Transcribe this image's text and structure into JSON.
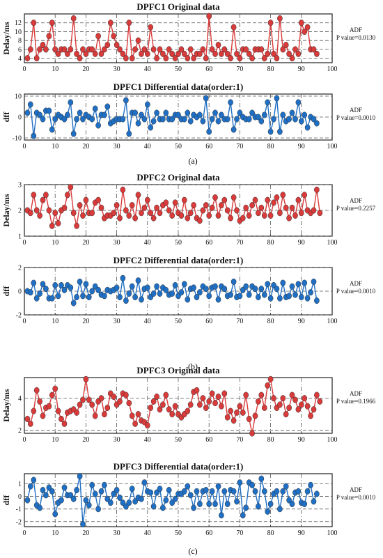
{
  "figure": {
    "captions": [
      "(a)",
      "(b)",
      "(c)"
    ]
  },
  "chart_data": [
    {
      "type": "line",
      "title": "DPFC1  Original data",
      "ylabel": "Delay/ms",
      "xlabel": "",
      "xlim": [
        0,
        100
      ],
      "ylim": [
        3,
        14
      ],
      "xticks": [
        0,
        10,
        20,
        30,
        40,
        50,
        60,
        70,
        80,
        90,
        100
      ],
      "yticks": [
        4,
        6,
        8,
        10,
        12
      ],
      "grid": true,
      "color": "#d93a3a",
      "adf_label": "ADF",
      "p_label": "P value=0.0130",
      "x_start": 1,
      "values": [
        4,
        6,
        12,
        4,
        6,
        7,
        6,
        9,
        12,
        6,
        5,
        6,
        6,
        5,
        6,
        13,
        5,
        4,
        6,
        5,
        6,
        6,
        5,
        9,
        5,
        6,
        7,
        12,
        9,
        7,
        6,
        5,
        4,
        12,
        4,
        6,
        8,
        5,
        6,
        5,
        11,
        6,
        4,
        6,
        5,
        4,
        6,
        5,
        4,
        5,
        6,
        5,
        4,
        6,
        4,
        5,
        5,
        6,
        4,
        13.5,
        6,
        5,
        7,
        5,
        6,
        5,
        4,
        11,
        5,
        4,
        6,
        6,
        5,
        4,
        6,
        6,
        6,
        4,
        5,
        12,
        5,
        4,
        13,
        6,
        7,
        5,
        4,
        6,
        5,
        12,
        10,
        11,
        6,
        6,
        5
      ]
    },
    {
      "type": "line",
      "title": "DPFC1  Differential data(order:1)",
      "ylabel": "dff",
      "xlabel": "",
      "xlim": [
        0,
        100
      ],
      "ylim": [
        -11,
        11
      ],
      "xticks": [
        0,
        10,
        20,
        30,
        40,
        50,
        60,
        70,
        80,
        90,
        100
      ],
      "yticks": [
        -10,
        0,
        10
      ],
      "grid": true,
      "color": "#1f6fc4",
      "adf_label": "ADF",
      "p_label": "P value=0.0010",
      "x_start": 1,
      "values": [
        2,
        6,
        -9,
        2,
        1,
        -1,
        3,
        3,
        -6,
        -1,
        1,
        0,
        -1,
        1,
        7,
        -8,
        -1,
        2,
        -1,
        1,
        0,
        -1,
        4,
        -4,
        1,
        1,
        5,
        -3,
        -2,
        -1,
        -1,
        -1,
        8,
        -8,
        2,
        2,
        -3,
        1,
        -1,
        6,
        -5,
        -2,
        2,
        -1,
        -1,
        2,
        -1,
        -1,
        1,
        1,
        -1,
        -1,
        2,
        -2,
        1,
        0,
        1,
        -2,
        9,
        -7,
        -1,
        2,
        -2,
        1,
        -1,
        -1,
        7,
        -6,
        -1,
        2,
        0,
        -1,
        -1,
        2,
        0,
        0,
        -2,
        1,
        7,
        -7,
        -1,
        9,
        -7,
        1,
        -2,
        -1,
        2,
        -1,
        7,
        -2,
        1,
        -5,
        0,
        -1,
        -3
      ]
    },
    {
      "type": "line",
      "title": "DPFC2   Original data",
      "ylabel": "Delay/ms",
      "xlabel": "",
      "xlim": [
        0,
        100
      ],
      "ylim": [
        1,
        3
      ],
      "xticks": [
        0,
        10,
        20,
        30,
        40,
        50,
        60,
        70,
        80,
        90,
        100
      ],
      "yticks": [
        1,
        2,
        3
      ],
      "grid": true,
      "color": "#d93a3a",
      "adf_label": "ADF",
      "p_label": "P value=0.2257",
      "x_start": 1,
      "values": [
        2.0,
        1.9,
        2.6,
        2.0,
        1.8,
        2.4,
        2.6,
        2.0,
        1.4,
        1.9,
        1.5,
        2.0,
        2.1,
        2.6,
        2.9,
        1.9,
        1.4,
        2.2,
        1.8,
        2.4,
        1.9,
        1.9,
        2.3,
        2.4,
        2.1,
        1.7,
        1.8,
        1.8,
        1.9,
        2.2,
        1.7,
        2.8,
        2.0,
        1.8,
        2.2,
        1.7,
        2.6,
        1.9,
        2.1,
        2.4,
        1.9,
        1.7,
        2.1,
        1.9,
        2.2,
        2.3,
        2.0,
        1.8,
        2.3,
        1.9,
        1.8,
        2.4,
        1.7,
        1.9,
        2.2,
        1.7,
        1.6,
        2.0,
        2.2,
        1.8,
        2.1,
        2.5,
        1.8,
        2.2,
        2.4,
        2.0,
        1.7,
        2.5,
        2.0,
        1.6,
        1.7,
        2.1,
        1.8,
        2.2,
        2.4,
        1.9,
        2.1,
        1.8,
        2.4,
        1.8,
        2.3,
        2.5,
        1.9,
        2.6,
        2.1,
        1.7,
        2.1,
        1.8,
        2.4,
        1.9,
        2.6,
        2.0,
        1.9,
        2.0,
        2.8,
        1.9
      ]
    },
    {
      "type": "line",
      "title": "DPFC2   Differential data(order:1)",
      "ylabel": "dff",
      "xlabel": "",
      "xlim": [
        0,
        100
      ],
      "ylim": [
        -2,
        2
      ],
      "xticks": [
        0,
        10,
        20,
        30,
        40,
        50,
        60,
        70,
        80,
        90,
        100
      ],
      "yticks": [
        -2,
        0,
        2
      ],
      "grid": true,
      "color": "#1f6fc4",
      "adf_label": "ADF",
      "p_label": "P  value=0.0010",
      "x_start": 1,
      "values": [
        0,
        -0.1,
        0.7,
        -0.6,
        -0.2,
        0.6,
        0.2,
        -0.6,
        -0.6,
        0.5,
        -0.4,
        0.5,
        0.1,
        0.5,
        0.3,
        -1.0,
        -0.5,
        0.8,
        -0.4,
        0.6,
        -0.5,
        0.0,
        0.4,
        0.1,
        -0.3,
        -0.4,
        0.1,
        0.0,
        0.1,
        0.3,
        -0.5,
        1.1,
        -0.8,
        -0.2,
        0.4,
        -0.5,
        0.9,
        -0.7,
        0.2,
        0.3,
        -0.5,
        -0.2,
        0.4,
        -0.2,
        0.3,
        0.1,
        -0.3,
        -0.2,
        0.5,
        -0.4,
        -0.1,
        0.6,
        -0.7,
        0.2,
        0.3,
        -0.5,
        -0.1,
        0.4,
        0.2,
        -0.4,
        0.3,
        0.4,
        -0.7,
        0.4,
        0.2,
        -0.4,
        -0.3,
        0.8,
        -0.5,
        -0.4,
        0.1,
        0.4,
        -0.3,
        0.4,
        0.2,
        -0.5,
        0.2,
        -0.3,
        0.6,
        -0.6,
        0.5,
        0.2,
        -0.6,
        0.7,
        -0.5,
        -0.4,
        0.4,
        -0.3,
        0.6,
        -0.5,
        0.7,
        -0.6,
        -0.1,
        0.8,
        -0.8
      ]
    },
    {
      "type": "line",
      "title": "DPFC3  Original data",
      "ylabel": "Delay/ms",
      "xlabel": "",
      "xlim": [
        0,
        100
      ],
      "ylim": [
        1.8,
        5.3
      ],
      "xticks": [
        0,
        10,
        20,
        30,
        40,
        50,
        60,
        70,
        80,
        90,
        100
      ],
      "yticks": [
        2,
        4
      ],
      "grid": true,
      "color": "#d93a3a",
      "adf_label": "ADF",
      "p_label": "P value=0.1966",
      "x_start": 1,
      "values": [
        2.7,
        2.4,
        3.2,
        4.5,
        3.8,
        2.9,
        3.4,
        3.5,
        4.2,
        4.6,
        3.2,
        2.7,
        2.4,
        3.1,
        3.2,
        3.3,
        3.1,
        3.6,
        3.9,
        5.2,
        3.9,
        3.6,
        2.9,
        3.8,
        4.0,
        3.0,
        3.4,
        4.3,
        4.1,
        3.6,
        3.8,
        4.3,
        4.2,
        3.7,
        2.9,
        2.4,
        3.0,
        2.6,
        2.5,
        2.3,
        3.4,
        3.8,
        4.1,
        3.3,
        3.6,
        4.2,
        3.3,
        3.0,
        3.5,
        3.0,
        2.8,
        3.0,
        3.2,
        3.6,
        4.4,
        4.5,
        3.6,
        4.0,
        3.4,
        3.8,
        4.3,
        3.7,
        4.1,
        3.5,
        4.3,
        2.8,
        3.2,
        2.6,
        3.1,
        3.5,
        3.1,
        4.2,
        2.7,
        1.8,
        2.9,
        3.8,
        4.2,
        3.4,
        4.8,
        5.2,
        4.0,
        3.4,
        3.6,
        4.0,
        3.0,
        3.4,
        4.2,
        3.9,
        3.3,
        3.6,
        4.0,
        3.5,
        2.9,
        3.3,
        4.2,
        3.8
      ]
    },
    {
      "type": "line",
      "title": "DPFC3  Differential data(order:1)",
      "ylabel": "dff",
      "xlabel": "",
      "xlim": [
        0,
        100
      ],
      "ylim": [
        -2.4,
        1.8
      ],
      "xticks": [
        0,
        10,
        20,
        30,
        40,
        50,
        60,
        70,
        80,
        90,
        100
      ],
      "yticks": [
        -2,
        -1,
        0,
        1
      ],
      "grid": true,
      "color": "#1f6fc4",
      "adf_label": "ADF",
      "p_label": "P value=0.0010",
      "x_start": 1,
      "values": [
        -0.3,
        0.8,
        1.3,
        -0.7,
        -0.9,
        0.5,
        0.1,
        0.7,
        0.4,
        -1.4,
        -0.5,
        -0.3,
        0.7,
        0.1,
        0.1,
        -0.2,
        0.5,
        1.6,
        -2.2,
        -0.3,
        -0.7,
        0.9,
        0.2,
        -1.0,
        0.4,
        0.9,
        -0.2,
        -0.5,
        0.2,
        0.5,
        -0.1,
        -0.5,
        -0.8,
        -0.5,
        0.6,
        -0.4,
        -0.1,
        -0.2,
        1.1,
        0.4,
        0.3,
        -0.8,
        0.3,
        0.6,
        -0.9,
        -0.3,
        0.5,
        -0.5,
        -0.2,
        0.2,
        0.2,
        0.4,
        0.8,
        0.1,
        -0.9,
        0.4,
        -0.6,
        0.4,
        0.5,
        -0.6,
        0.4,
        -0.6,
        0.8,
        -1.5,
        0.4,
        -0.6,
        0.5,
        0.4,
        -0.4,
        1.1,
        -1.5,
        -0.9,
        1.1,
        0.9,
        0.4,
        -0.8,
        1.4,
        0.4,
        -1.2,
        -0.6,
        0.2,
        0.4,
        -1.0,
        0.4,
        0.8,
        -0.3,
        -0.6,
        0.3,
        0.4,
        -0.5,
        -0.6,
        0.4,
        0.9,
        -0.4,
        0.2
      ]
    }
  ]
}
